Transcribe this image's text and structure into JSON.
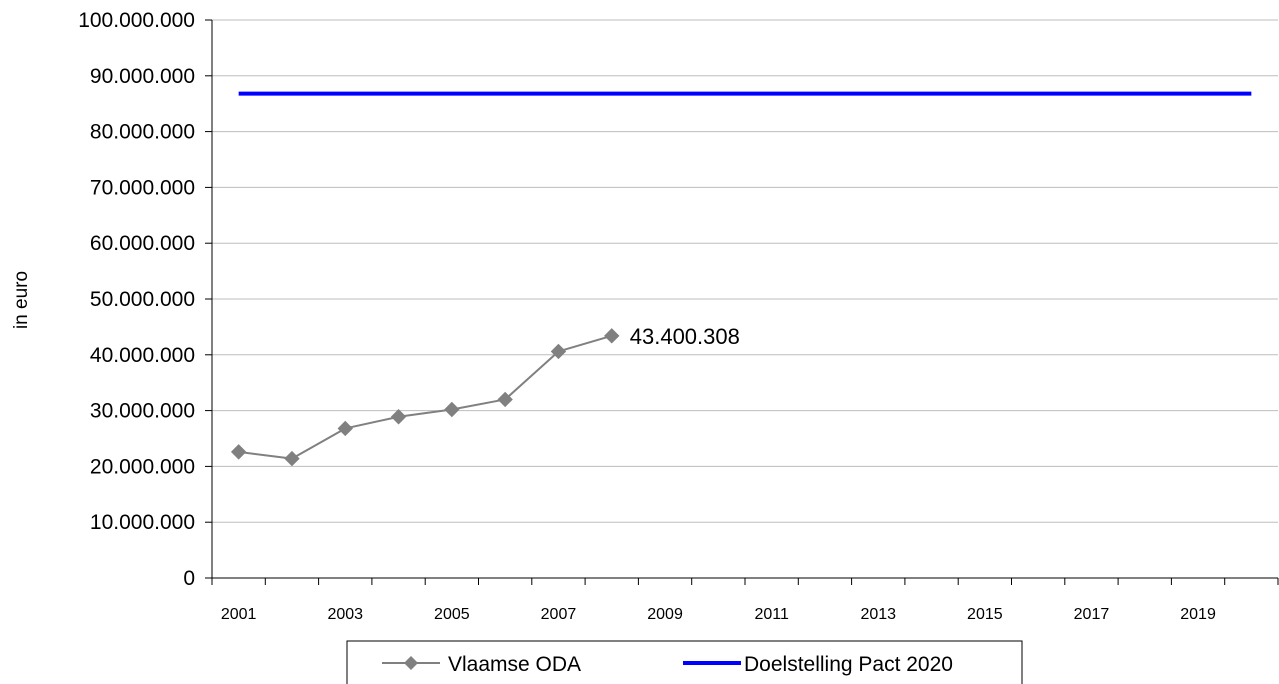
{
  "chart_data": {
    "type": "line",
    "title": "",
    "xlabel": "",
    "ylabel": "in euro",
    "ylim": [
      0,
      100000000
    ],
    "y_ticks": [
      "0",
      "10.000.000",
      "20.000.000",
      "30.000.000",
      "40.000.000",
      "50.000.000",
      "60.000.000",
      "70.000.000",
      "80.000.000",
      "90.000.000",
      "100.000.000"
    ],
    "y_tick_values": [
      0,
      10000000,
      20000000,
      30000000,
      40000000,
      50000000,
      60000000,
      70000000,
      80000000,
      90000000,
      100000000
    ],
    "x_tick_labels": [
      "2001",
      "2003",
      "2005",
      "2007",
      "2009",
      "2011",
      "2013",
      "2015",
      "2017",
      "2019"
    ],
    "grid": true,
    "legend_position": "bottom",
    "series": [
      {
        "name": "Vlaamse ODA",
        "color": "#808080",
        "marker": "diamond",
        "x": [
          2001,
          2002,
          2003,
          2004,
          2005,
          2006,
          2007,
          2008
        ],
        "values": [
          22600000,
          21400000,
          26800000,
          28900000,
          30200000,
          32000000,
          40600000,
          43400308
        ]
      },
      {
        "name": "Doelstelling Pact 2020",
        "color": "#0000ff",
        "marker": "none",
        "x": [
          2001,
          2020
        ],
        "values": [
          86800000,
          86800000
        ]
      }
    ],
    "annotations": [
      {
        "series": "Vlaamse ODA",
        "x": 2008,
        "text": "43.400.308"
      }
    ]
  }
}
